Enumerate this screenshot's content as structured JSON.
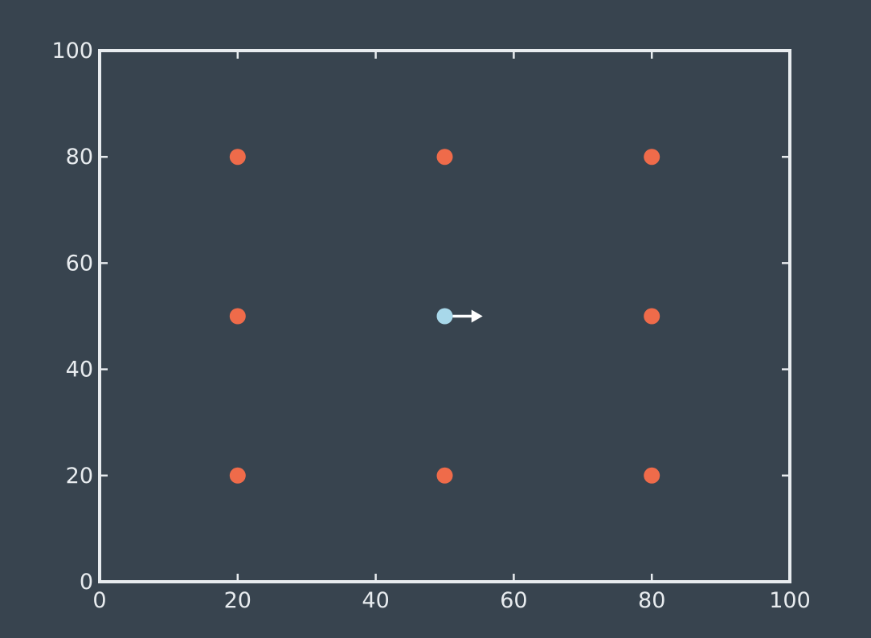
{
  "chart_data": {
    "type": "scatter",
    "title": "",
    "xlabel": "",
    "ylabel": "",
    "xlim": [
      0,
      100
    ],
    "ylim": [
      0,
      100
    ],
    "x_ticks": [
      0,
      20,
      40,
      60,
      80,
      100
    ],
    "y_ticks": [
      0,
      20,
      40,
      60,
      80,
      100
    ],
    "x_tick_labels": [
      "0",
      "20",
      "40",
      "60",
      "80",
      "100"
    ],
    "y_tick_labels": [
      "0",
      "20",
      "40",
      "60",
      "80",
      "100"
    ],
    "grid": false,
    "series": [
      {
        "color": "#ef6b4a",
        "points": [
          {
            "x": 20,
            "y": 80
          },
          {
            "x": 50,
            "y": 80
          },
          {
            "x": 80,
            "y": 80
          },
          {
            "x": 20,
            "y": 50
          },
          {
            "x": 80,
            "y": 50
          },
          {
            "x": 20,
            "y": 20
          },
          {
            "x": 50,
            "y": 20
          },
          {
            "x": 80,
            "y": 20
          }
        ]
      },
      {
        "color": "#a8d8ea",
        "points": [
          {
            "x": 50,
            "y": 50
          }
        ]
      }
    ],
    "annotations": [
      {
        "type": "arrow",
        "from": {
          "x": 50,
          "y": 50
        },
        "to": {
          "x": 55.5,
          "y": 50
        },
        "color": "#ffffff"
      }
    ]
  },
  "colors": {
    "background": "#38444f",
    "axis": "#e8ecef"
  }
}
